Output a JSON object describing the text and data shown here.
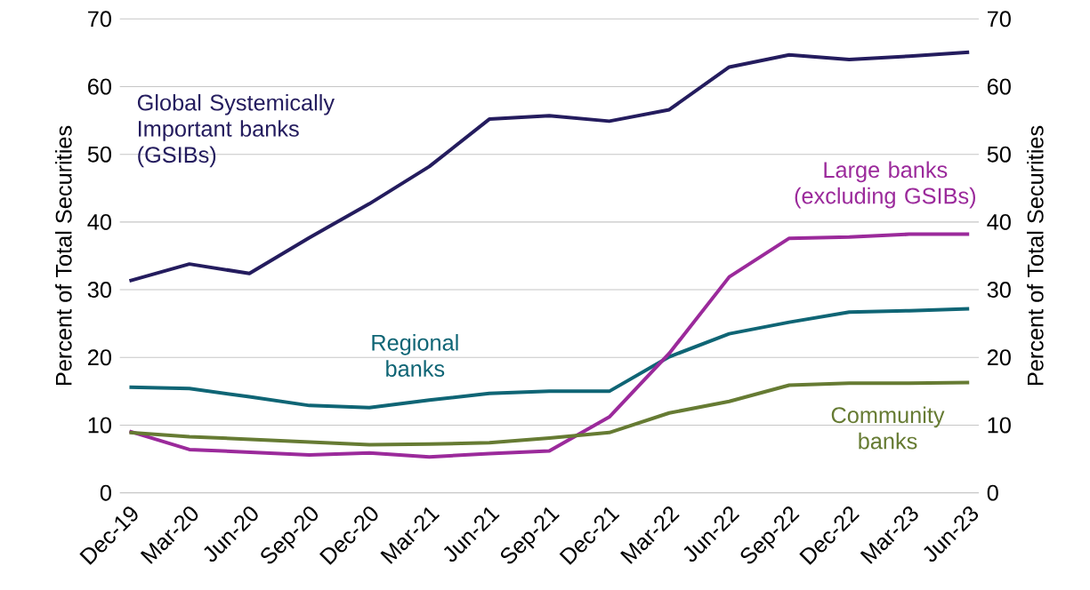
{
  "chart_data": {
    "type": "line",
    "ylabel": "Percent of Total Securities",
    "y2label": "Percent of Total Securities",
    "categories": [
      "Dec-19",
      "Mar-20",
      "Jun-20",
      "Sep-20",
      "Dec-20",
      "Mar-21",
      "Jun-21",
      "Sep-21",
      "Dec-21",
      "Mar-22",
      "Jun-22",
      "Sep-22",
      "Dec-22",
      "Mar-23",
      "Jun-23"
    ],
    "series": [
      {
        "name": "Global Systemically Important banks (GSIBs)",
        "color": "#241c5e",
        "values": [
          31.3,
          33.8,
          32.4,
          37.7,
          42.7,
          48.2,
          55.2,
          55.7,
          54.9,
          56.6,
          62.9,
          64.7,
          64.0,
          64.5,
          65.1
        ]
      },
      {
        "name": "Regional banks",
        "color": "#0f6575",
        "values": [
          15.6,
          15.4,
          14.2,
          12.9,
          12.6,
          13.7,
          14.7,
          15.0,
          15.0,
          20.1,
          23.5,
          25.2,
          26.7,
          26.9,
          27.2
        ]
      },
      {
        "name": "Large banks (excluding GSIBs)",
        "color": "#9b2a9b",
        "values": [
          9.1,
          6.4,
          6.0,
          5.6,
          5.9,
          5.3,
          5.8,
          6.2,
          11.2,
          20.6,
          31.9,
          37.6,
          37.8,
          38.2,
          38.2
        ]
      },
      {
        "name": "Community banks",
        "color": "#667b33",
        "values": [
          8.9,
          8.3,
          7.9,
          7.5,
          7.1,
          7.2,
          7.4,
          8.1,
          8.9,
          11.8,
          13.5,
          15.9,
          16.2,
          16.2,
          16.3
        ]
      }
    ],
    "ylim": [
      0,
      70
    ],
    "yticks": [
      0,
      10,
      20,
      30,
      40,
      50,
      60,
      70
    ],
    "y2lim": [
      0,
      70
    ],
    "y2ticks": [
      0,
      10,
      20,
      30,
      40,
      50,
      60,
      70
    ],
    "grid": "y",
    "marker": "none",
    "line_style": "solid"
  }
}
